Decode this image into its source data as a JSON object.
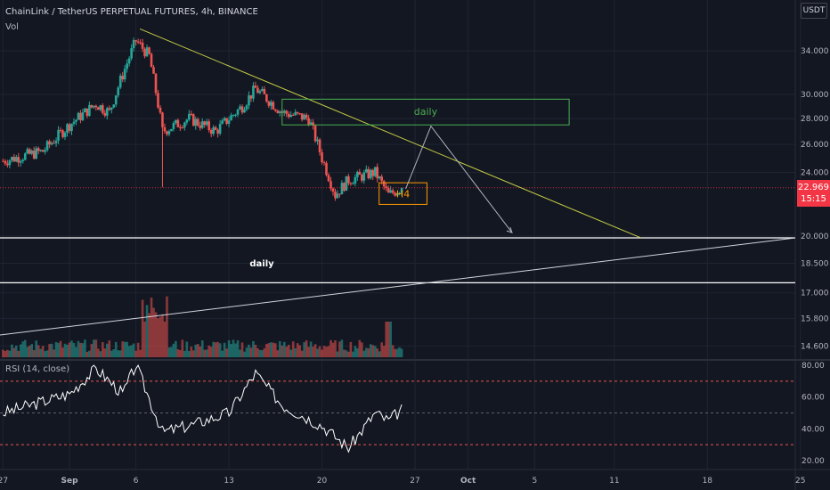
{
  "header": {
    "title": "ChainLink / TetherUS PERPETUAL FUTURES, 4h, BINANCE",
    "volume_label": "Vol",
    "currency": "USDT"
  },
  "price_axis": {
    "ticks": [
      "34.000",
      "30.000",
      "28.000",
      "26.000",
      "24.000",
      "20.000",
      "18.500",
      "17.000",
      "15.800",
      "14.600"
    ]
  },
  "rsi_axis": {
    "ticks": [
      "80.00",
      "60.00",
      "40.00",
      "20.00"
    ]
  },
  "time_axis": {
    "ticks": [
      "27",
      "Sep",
      "6",
      "13",
      "20",
      "27",
      "Oct",
      "5",
      "11",
      "18",
      "25"
    ]
  },
  "last_price": {
    "value": "22.969",
    "countdown": "15:15"
  },
  "annotations": {
    "daily_zone_label": "daily",
    "h4_zone_label": "H4",
    "daily_line_label": "daily"
  },
  "rsi": {
    "title": "RSI (14, close)"
  },
  "colors": {
    "up": "#26a69a",
    "down": "#ef5350",
    "trendline": "#c4cc44",
    "daily_zone": "#4caf50",
    "h4_zone": "#ff9800",
    "rsi_line": "#ffffff",
    "rsi_band": "#ef5350"
  },
  "chart_data": [
    {
      "type": "candlestick",
      "title": "ChainLink / TetherUS PERPETUAL FUTURES, 4h, BINANCE",
      "x_ticks": [
        "27",
        "Sep",
        "6",
        "13",
        "20",
        "27",
        "Oct",
        "5",
        "11",
        "18",
        "25"
      ],
      "y_ticks": [
        34,
        30,
        28,
        26,
        24,
        20,
        18.5,
        17,
        15.8,
        14.6
      ],
      "y_scale": "log",
      "last_price": 22.969,
      "approx_close_path": [
        {
          "x": "Aug 27",
          "y": 24.8
        },
        {
          "x": "Aug 30",
          "y": 25.5
        },
        {
          "x": "Sep 1",
          "y": 27.5
        },
        {
          "x": "Sep 3",
          "y": 29.2
        },
        {
          "x": "Sep 4",
          "y": 28.5
        },
        {
          "x": "Sep 6",
          "y": 35.0
        },
        {
          "x": "Sep 7",
          "y": 33.5
        },
        {
          "x": "Sep 8",
          "y": 27.0
        },
        {
          "x": "Sep 10",
          "y": 28.0
        },
        {
          "x": "Sep 12",
          "y": 27.0
        },
        {
          "x": "Sep 14",
          "y": 29.0
        },
        {
          "x": "Sep 15",
          "y": 30.5
        },
        {
          "x": "Sep 17",
          "y": 28.5
        },
        {
          "x": "Sep 19",
          "y": 28.0
        },
        {
          "x": "Sep 20",
          "y": 25.0
        },
        {
          "x": "Sep 21",
          "y": 22.5
        },
        {
          "x": "Sep 22",
          "y": 23.5
        },
        {
          "x": "Sep 24",
          "y": 24.0
        },
        {
          "x": "Sep 25",
          "y": 22.5
        },
        {
          "x": "Sep 26",
          "y": 22.97
        }
      ],
      "horizontal_lines": [
        19.9,
        17.5
      ]
    },
    {
      "type": "line",
      "title": "RSI (14, close)",
      "y_ticks": [
        80,
        60,
        40,
        20
      ],
      "bands": [
        70,
        50,
        30
      ],
      "approx_values": [
        {
          "x": "Aug 27",
          "y": 50
        },
        {
          "x": "Sep 1",
          "y": 62
        },
        {
          "x": "Sep 3",
          "y": 78
        },
        {
          "x": "Sep 5",
          "y": 62
        },
        {
          "x": "Sep 6",
          "y": 80
        },
        {
          "x": "Sep 8",
          "y": 38
        },
        {
          "x": "Sep 10",
          "y": 42
        },
        {
          "x": "Sep 13",
          "y": 50
        },
        {
          "x": "Sep 15",
          "y": 75
        },
        {
          "x": "Sep 17",
          "y": 55
        },
        {
          "x": "Sep 20",
          "y": 42
        },
        {
          "x": "Sep 22",
          "y": 28
        },
        {
          "x": "Sep 24",
          "y": 50
        },
        {
          "x": "Sep 25",
          "y": 45
        },
        {
          "x": "Sep 26",
          "y": 52
        }
      ]
    }
  ]
}
